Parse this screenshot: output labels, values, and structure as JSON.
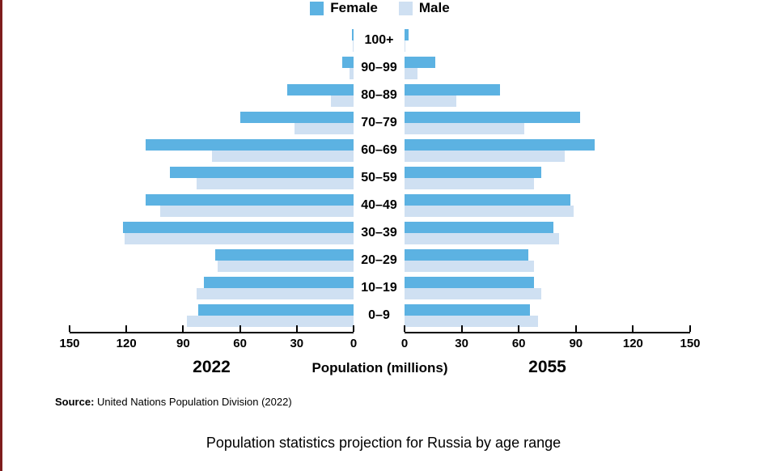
{
  "colors": {
    "female": "#5cb2e2",
    "male": "#cfe0f2",
    "axis": "#000000",
    "left_edge_strip": "#7f1d1d"
  },
  "legend": [
    {
      "label": "Female",
      "color_key": "female"
    },
    {
      "label": "Male",
      "color_key": "male"
    }
  ],
  "chart_data": {
    "type": "bar",
    "variant": "population-pyramid",
    "title": "Population statistics projection for Russia by age range",
    "xlabel": "Population (millions)",
    "age_groups": [
      "100+",
      "90–99",
      "80–89",
      "70–79",
      "60–69",
      "50–59",
      "40–49",
      "30–39",
      "20–29",
      "10–19",
      "0–9"
    ],
    "axis": {
      "max": 150,
      "ticks_left": [
        150,
        120,
        90,
        60,
        30,
        0
      ],
      "ticks_right": [
        0,
        30,
        60,
        90,
        120,
        150
      ]
    },
    "panels": [
      {
        "year": "2022",
        "side": "left",
        "series": [
          {
            "name": "Female",
            "values": [
              1,
              6,
              35,
              60,
              110,
              97,
              110,
              122,
              73,
              79,
              82
            ]
          },
          {
            "name": "Male",
            "values": [
              0.5,
              2,
              12,
              31,
              75,
              83,
              102,
              121,
              72,
              83,
              88
            ]
          }
        ]
      },
      {
        "year": "2055",
        "side": "right",
        "series": [
          {
            "name": "Female",
            "values": [
              2,
              16,
              50,
              92,
              100,
              72,
              87,
              78,
              65,
              68,
              66
            ]
          },
          {
            "name": "Male",
            "values": [
              0.5,
              7,
              27,
              63,
              84,
              68,
              89,
              81,
              68,
              72,
              70
            ]
          }
        ]
      }
    ]
  },
  "footer": {
    "source_label": "Source:",
    "source_text": " United Nations Population Division (2022)",
    "title": "Population statistics projection for Russia by age range"
  }
}
